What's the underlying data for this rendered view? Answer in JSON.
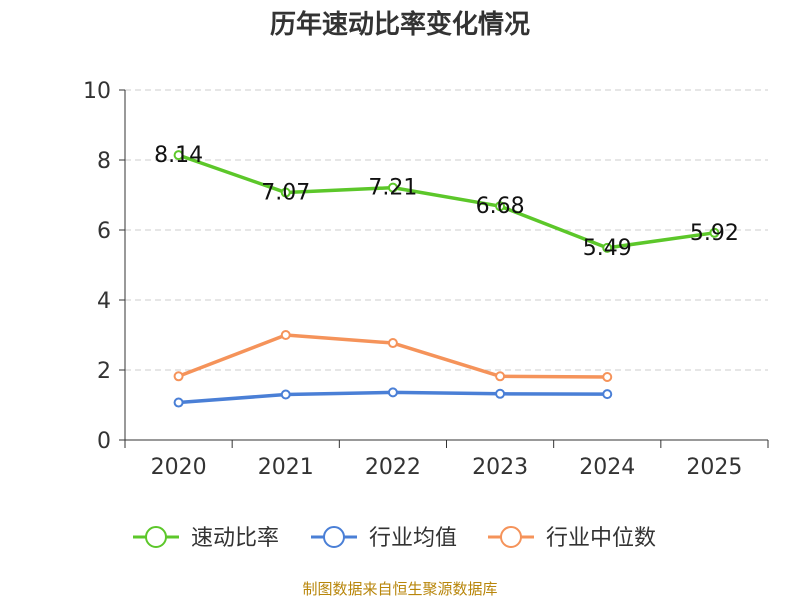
{
  "chart_data": {
    "type": "line",
    "title": "历年速动比率变化情况",
    "xlabel": "",
    "ylabel": "",
    "categories": [
      "2020",
      "2021",
      "2022",
      "2023",
      "2024",
      "2025"
    ],
    "y_ticks": [
      "0",
      "2",
      "4",
      "6",
      "8",
      "10"
    ],
    "ylim": [
      0,
      10
    ],
    "grid": true,
    "legend_position": "bottom",
    "series": [
      {
        "name": "速动比率",
        "color": "#5cc72a",
        "values": [
          8.14,
          7.07,
          7.21,
          6.68,
          5.49,
          5.92
        ],
        "labels": [
          "8.14",
          "7.07",
          "7.21",
          "6.68",
          "5.49",
          "5.92"
        ],
        "show_labels": true
      },
      {
        "name": "行业均值",
        "color": "#4a7fd6",
        "values": [
          1.07,
          1.3,
          1.36,
          1.32,
          1.31,
          null
        ],
        "show_labels": false
      },
      {
        "name": "行业中位数",
        "color": "#f5935a",
        "values": [
          1.82,
          3.0,
          2.77,
          1.82,
          1.8,
          null
        ],
        "show_labels": false
      }
    ]
  },
  "source_note": "制图数据来自恒生聚源数据库"
}
